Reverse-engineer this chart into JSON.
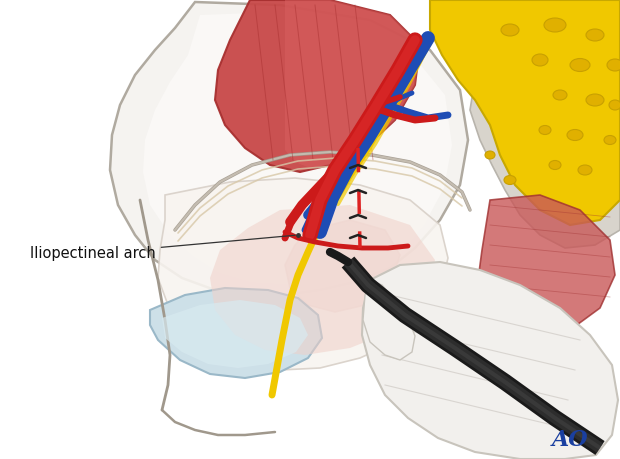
{
  "bg_color": "#ffffff",
  "ao_text": "AO",
  "ao_color": "#1a3fa0",
  "ao_fontsize": 16,
  "label_text": "Iliopectineal arch",
  "label_color": "#111111",
  "label_fontsize": 10.5,
  "artery_red": "#cc1a1a",
  "vein_blue": "#1e4db5",
  "nerve_yellow": "#f0c800",
  "bone_yellow": "#f0c800",
  "muscle_red_light": "#cc5555",
  "muscle_red_dark": "#aa3333",
  "dashed_red": "#dd2222",
  "tool_dark": "#252525",
  "glove_white": "#f2f0ed",
  "bone_gray": "#d8d4cc",
  "pelvic_white": "#f5f3f0",
  "pubic_light_blue": "#cde0e8"
}
